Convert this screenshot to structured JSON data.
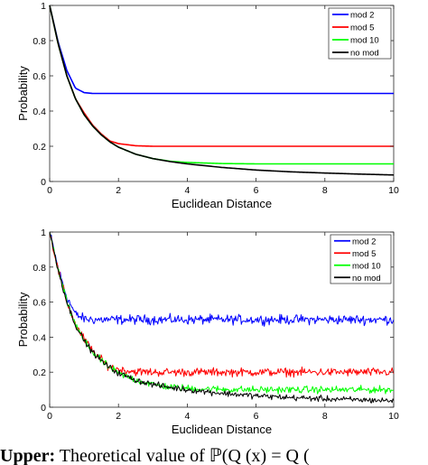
{
  "chart_data": [
    {
      "type": "line",
      "xlabel": "Euclidean Distance",
      "ylabel": "Probability",
      "xlim": [
        0,
        10
      ],
      "ylim": [
        0,
        1
      ],
      "x_ticks": [
        "0",
        "2",
        "4",
        "6",
        "8",
        "10"
      ],
      "y_ticks": [
        "0",
        "0.2",
        "0.4",
        "0.6",
        "0.8",
        "1"
      ],
      "legend_position": "top-right",
      "grid": false,
      "x": [
        0,
        0.25,
        0.5,
        0.75,
        1,
        1.25,
        1.5,
        1.75,
        2,
        2.5,
        3,
        3.5,
        4,
        5,
        6,
        7,
        8,
        9,
        10
      ],
      "series": [
        {
          "name": "mod 2",
          "color": "#0000ff",
          "noisy": false,
          "values": [
            1,
            0.79,
            0.63,
            0.53,
            0.505,
            0.5,
            0.5,
            0.5,
            0.5,
            0.5,
            0.5,
            0.5,
            0.5,
            0.5,
            0.5,
            0.5,
            0.5,
            0.5,
            0.5
          ]
        },
        {
          "name": "mod 5",
          "color": "#ff0000",
          "noisy": false,
          "values": [
            1,
            0.78,
            0.6,
            0.47,
            0.39,
            0.32,
            0.27,
            0.23,
            0.215,
            0.203,
            0.2,
            0.2,
            0.2,
            0.2,
            0.2,
            0.2,
            0.2,
            0.2,
            0.2
          ]
        },
        {
          "name": "mod 10",
          "color": "#00ff00",
          "noisy": false,
          "values": [
            1,
            0.78,
            0.6,
            0.47,
            0.38,
            0.315,
            0.265,
            0.225,
            0.195,
            0.155,
            0.13,
            0.115,
            0.108,
            0.102,
            0.1,
            0.1,
            0.1,
            0.1,
            0.1
          ]
        },
        {
          "name": "no mod",
          "color": "#000000",
          "noisy": false,
          "values": [
            1,
            0.78,
            0.6,
            0.47,
            0.38,
            0.315,
            0.265,
            0.225,
            0.195,
            0.155,
            0.13,
            0.113,
            0.1,
            0.08,
            0.065,
            0.055,
            0.048,
            0.042,
            0.037
          ]
        }
      ]
    },
    {
      "type": "line",
      "xlabel": "Euclidean Distance",
      "ylabel": "Probability",
      "xlim": [
        0,
        10
      ],
      "ylim": [
        0,
        1
      ],
      "x_ticks": [
        "0",
        "2",
        "4",
        "6",
        "8",
        "10"
      ],
      "y_ticks": [
        "0",
        "0.2",
        "0.4",
        "0.6",
        "0.8",
        "1"
      ],
      "legend_position": "top-right",
      "grid": false,
      "x": [
        0,
        0.25,
        0.5,
        0.75,
        1,
        1.25,
        1.5,
        1.75,
        2,
        2.5,
        3,
        3.5,
        4,
        5,
        6,
        7,
        8,
        9,
        10
      ],
      "series": [
        {
          "name": "mod 2",
          "color": "#0000ff",
          "noisy": true,
          "noise": 0.04,
          "values": [
            1,
            0.79,
            0.63,
            0.53,
            0.505,
            0.5,
            0.5,
            0.5,
            0.5,
            0.5,
            0.5,
            0.5,
            0.5,
            0.5,
            0.5,
            0.5,
            0.5,
            0.5,
            0.5
          ]
        },
        {
          "name": "mod 5",
          "color": "#ff0000",
          "noisy": true,
          "noise": 0.035,
          "values": [
            1,
            0.78,
            0.6,
            0.47,
            0.39,
            0.32,
            0.27,
            0.23,
            0.215,
            0.203,
            0.2,
            0.2,
            0.2,
            0.2,
            0.2,
            0.2,
            0.2,
            0.2,
            0.2
          ]
        },
        {
          "name": "mod 10",
          "color": "#00ff00",
          "noisy": true,
          "noise": 0.03,
          "values": [
            1,
            0.78,
            0.6,
            0.47,
            0.38,
            0.315,
            0.265,
            0.225,
            0.195,
            0.155,
            0.13,
            0.115,
            0.108,
            0.102,
            0.1,
            0.1,
            0.1,
            0.1,
            0.1
          ]
        },
        {
          "name": "no mod",
          "color": "#000000",
          "noisy": true,
          "noise": 0.025,
          "values": [
            1,
            0.78,
            0.6,
            0.47,
            0.38,
            0.315,
            0.265,
            0.225,
            0.195,
            0.155,
            0.13,
            0.113,
            0.1,
            0.08,
            0.065,
            0.055,
            0.048,
            0.042,
            0.037
          ]
        }
      ]
    }
  ],
  "caption": {
    "bold": "Upper:",
    "text": " Theoretical value of ℙ(Q (x) = Q ("
  }
}
